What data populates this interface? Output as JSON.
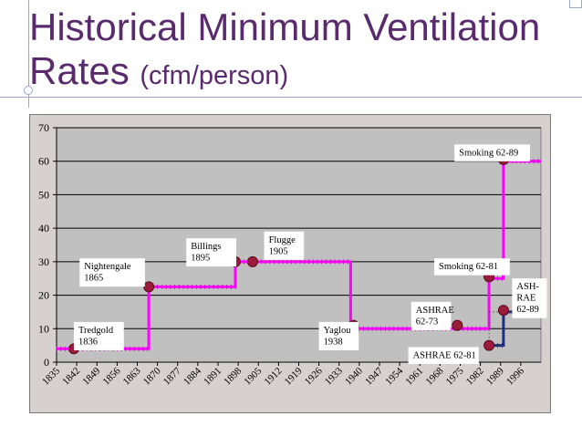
{
  "title": {
    "line1": "Historical Minimum Ventilation",
    "line2_main": "Rates",
    "line2_sub": "(cfm/person)"
  },
  "colors": {
    "title": "#5a2a6e",
    "step_line": "#ff00ff",
    "step_line_blue": "#1f2f7a",
    "marker": "#9b1b3a",
    "plot_bg": "#c0c0c0",
    "grid": "#000000"
  },
  "chart_data": {
    "type": "line",
    "ylim": [
      0,
      70
    ],
    "xlim": [
      1835,
      2003
    ],
    "yticks": [
      0,
      10,
      20,
      30,
      40,
      50,
      60,
      70
    ],
    "xticks": [
      1835,
      1842,
      1849,
      1856,
      1863,
      1870,
      1877,
      1884,
      1891,
      1898,
      1905,
      1912,
      1919,
      1926,
      1933,
      1940,
      1947,
      1954,
      1961,
      1968,
      1975,
      1982,
      1989,
      1996
    ],
    "grid": "horizontal",
    "series": [
      {
        "color": "#ff00ff",
        "points": [
          [
            1835,
            4
          ],
          [
            1867,
            4
          ],
          [
            1867,
            22.5
          ],
          [
            1897,
            22.5
          ],
          [
            1897,
            30
          ],
          [
            1937,
            30
          ],
          [
            1937,
            10
          ],
          [
            1985,
            10
          ],
          [
            1985,
            25
          ],
          [
            1990,
            25
          ],
          [
            1990,
            60
          ],
          [
            2003,
            60
          ]
        ]
      },
      {
        "color": "#1f2f7a",
        "points": [
          [
            1985,
            5
          ],
          [
            1990,
            5
          ],
          [
            1990,
            15
          ],
          [
            2001,
            15
          ]
        ]
      }
    ],
    "markers": [
      {
        "x": 1841,
        "y": 4
      },
      {
        "x": 1867,
        "y": 22.5
      },
      {
        "x": 1897,
        "y": 30
      },
      {
        "x": 1903,
        "y": 30
      },
      {
        "x": 1938,
        "y": 11
      },
      {
        "x": 1974,
        "y": 11
      },
      {
        "x": 1985,
        "y": 25.5
      },
      {
        "x": 1985,
        "y": 5
      },
      {
        "x": 1990,
        "y": 60.5
      },
      {
        "x": 1990,
        "y": 15.5
      }
    ],
    "annotations": [
      {
        "text": "Tredgold\n1836",
        "x": 1841,
        "y": 12
      },
      {
        "text": "Nightengale\n1865",
        "x": 1843,
        "y": 31
      },
      {
        "text": "Billings\n1895",
        "x": 1880,
        "y": 37
      },
      {
        "text": "Flugge\n1905",
        "x": 1907,
        "y": 39
      },
      {
        "text": "Yaglou\n1938",
        "x": 1926,
        "y": 12
      },
      {
        "text": "ASHRAE\n62-73",
        "x": 1958,
        "y": 18
      },
      {
        "text": "Smoking 62-81",
        "x": 1966,
        "y": 31
      },
      {
        "text": "Smoking 62-89",
        "x": 1973,
        "y": 65
      },
      {
        "text": "ASHRAE 62-81",
        "x": 1957,
        "y": 4.5
      },
      {
        "text": "ASH-\nRAE\n62-89",
        "x": 1993,
        "y": 25
      }
    ]
  }
}
